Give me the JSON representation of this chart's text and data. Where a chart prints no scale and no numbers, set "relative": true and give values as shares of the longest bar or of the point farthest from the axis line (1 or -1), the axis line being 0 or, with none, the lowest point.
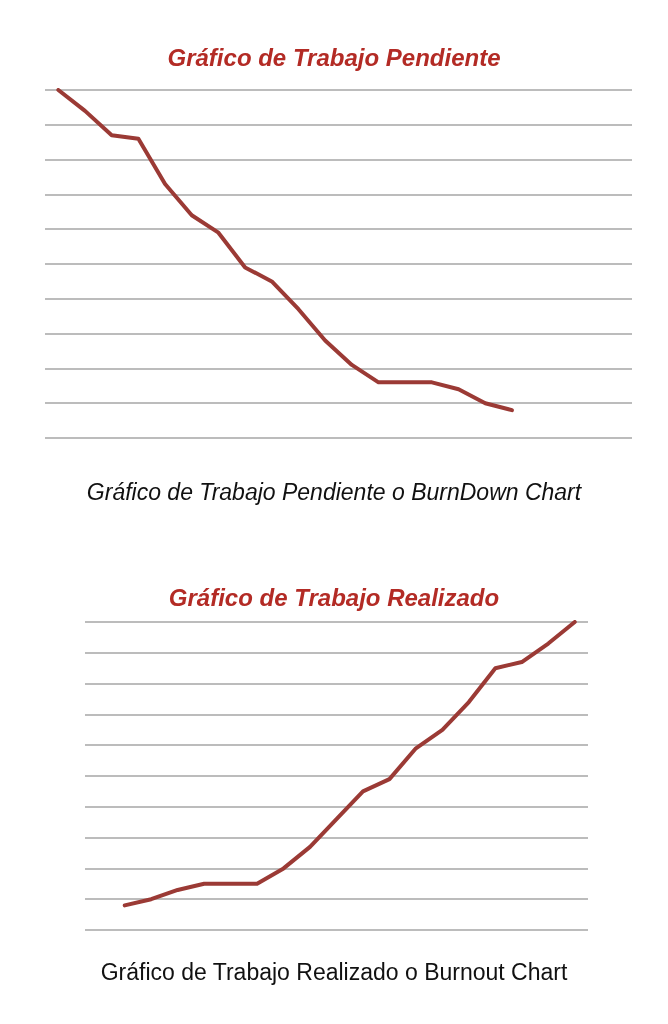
{
  "chart_data": [
    {
      "type": "line",
      "title": "Gráfico de Trabajo Pendiente",
      "annotations": [
        "Gráfico de Trabajo Pendiente o BurnDown Chart"
      ],
      "relative": true,
      "grid": "y",
      "marker": "none",
      "categories": [
        null,
        null,
        null,
        null,
        null,
        null,
        null,
        null,
        null,
        null,
        null,
        null,
        null,
        null,
        null,
        null,
        null,
        null,
        null,
        null,
        null,
        null
      ],
      "series": [
        {
          "color": "#9b3a35",
          "values": [
            1,
            0.94,
            0.87,
            0.86,
            0.73,
            0.64,
            0.59,
            0.49,
            0.45,
            0.37,
            0.28,
            0.21,
            0.16,
            0.16,
            0.16,
            0.14,
            0.1,
            0.08,
            null,
            null,
            null,
            null
          ]
        }
      ]
    },
    {
      "type": "line",
      "title": "Gráfico de Trabajo Realizado",
      "annotations": [
        "Gráfico de Trabajo Realizado o Burnout Chart"
      ],
      "relative": true,
      "grid": "y",
      "marker": "none",
      "categories": [
        null,
        null,
        null,
        null,
        null,
        null,
        null,
        null,
        null,
        null,
        null,
        null,
        null,
        null,
        null,
        null,
        null,
        null,
        null
      ],
      "series": [
        {
          "color": "#9b3a35",
          "values": [
            null,
            0.08,
            0.1,
            0.13,
            0.15,
            0.15,
            0.15,
            0.2,
            0.27,
            0.36,
            0.45,
            0.49,
            0.59,
            0.65,
            0.74,
            0.85,
            0.87,
            0.93,
            1
          ]
        }
      ]
    }
  ]
}
